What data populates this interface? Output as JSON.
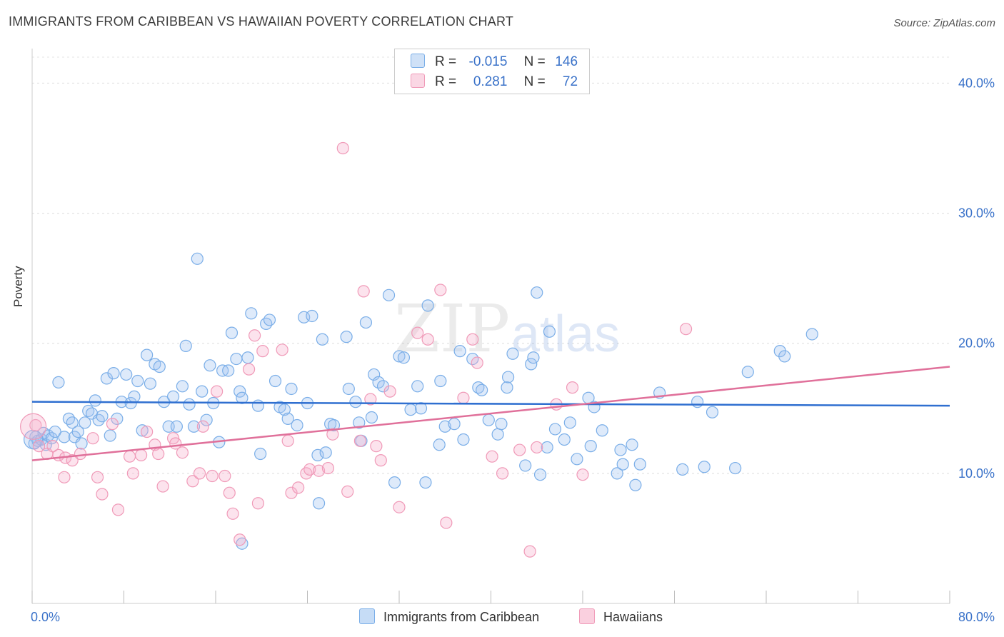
{
  "title": "IMMIGRANTS FROM CARIBBEAN VS HAWAIIAN POVERTY CORRELATION CHART",
  "source": "Source: ZipAtlas.com",
  "watermark": {
    "zip": "ZIP",
    "atlas": "atlas"
  },
  "legend": {
    "rows": [
      {
        "r_label": "R =",
        "r_value": "-0.015",
        "n_label": "N =",
        "n_value": "146"
      },
      {
        "r_label": "R =",
        "r_value": "0.281",
        "n_label": "N =",
        "n_value": "72"
      }
    ]
  },
  "chart_data": {
    "type": "scatter",
    "xlabel": "",
    "ylabel": "Poverty",
    "xlim": [
      0,
      80
    ],
    "ylim": [
      0,
      42
    ],
    "x_tick_labels": [
      "0.0%",
      "80.0%"
    ],
    "y_tick_labels": [
      "10.0%",
      "20.0%",
      "30.0%",
      "40.0%"
    ],
    "y_ticks": [
      10,
      20,
      30,
      40
    ],
    "grid": true,
    "legend_position": "top-center",
    "series": [
      {
        "name": "Immigrants from Caribbean",
        "color": "#7aaee8",
        "fill": "rgba(160,196,240,0.35)",
        "line_color": "#2f6fd0",
        "r": "-0.015",
        "n": "146",
        "trend": [
          [
            0,
            15.5
          ],
          [
            80,
            15.2
          ]
        ],
        "points": [
          [
            0.2,
            12.3
          ],
          [
            0.3,
            12.8
          ],
          [
            0.5,
            12.5
          ],
          [
            0.8,
            12.6
          ],
          [
            1.0,
            13.1
          ],
          [
            1.2,
            12.2
          ],
          [
            1.4,
            12.9
          ],
          [
            1.7,
            12.7
          ],
          [
            2.0,
            13.2
          ],
          [
            2.3,
            17.0
          ],
          [
            2.8,
            12.8
          ],
          [
            3.2,
            14.2
          ],
          [
            3.5,
            13.9
          ],
          [
            3.7,
            12.8
          ],
          [
            4.0,
            13.2
          ],
          [
            4.3,
            12.3
          ],
          [
            4.6,
            13.9
          ],
          [
            4.9,
            14.8
          ],
          [
            5.2,
            14.6
          ],
          [
            5.5,
            15.6
          ],
          [
            5.8,
            14.1
          ],
          [
            6.1,
            14.4
          ],
          [
            6.5,
            17.3
          ],
          [
            6.8,
            12.9
          ],
          [
            7.1,
            17.7
          ],
          [
            7.4,
            14.2
          ],
          [
            7.8,
            15.5
          ],
          [
            8.2,
            17.6
          ],
          [
            8.6,
            15.4
          ],
          [
            8.9,
            15.9
          ],
          [
            9.2,
            17.1
          ],
          [
            9.6,
            13.3
          ],
          [
            10.0,
            19.1
          ],
          [
            10.3,
            16.9
          ],
          [
            10.7,
            18.4
          ],
          [
            11.1,
            18.2
          ],
          [
            11.5,
            15.5
          ],
          [
            11.9,
            13.6
          ],
          [
            12.3,
            15.9
          ],
          [
            12.6,
            13.6
          ],
          [
            13.1,
            16.7
          ],
          [
            13.4,
            19.8
          ],
          [
            13.7,
            15.3
          ],
          [
            14.1,
            13.6
          ],
          [
            14.4,
            26.5
          ],
          [
            14.8,
            16.3
          ],
          [
            15.2,
            14.1
          ],
          [
            15.5,
            18.3
          ],
          [
            15.8,
            15.4
          ],
          [
            16.3,
            12.4
          ],
          [
            16.6,
            17.9
          ],
          [
            17.1,
            17.9
          ],
          [
            17.4,
            20.8
          ],
          [
            17.8,
            18.8
          ],
          [
            18.1,
            16.3
          ],
          [
            18.3,
            15.8
          ],
          [
            18.8,
            18.9
          ],
          [
            19.1,
            22.3
          ],
          [
            19.7,
            15.2
          ],
          [
            19.9,
            11.5
          ],
          [
            20.4,
            21.5
          ],
          [
            20.7,
            21.8
          ],
          [
            21.2,
            17.1
          ],
          [
            21.6,
            15.1
          ],
          [
            22.0,
            14.9
          ],
          [
            22.3,
            14.2
          ],
          [
            22.6,
            16.5
          ],
          [
            23.1,
            13.7
          ],
          [
            23.7,
            22.0
          ],
          [
            24.0,
            15.4
          ],
          [
            24.4,
            22.1
          ],
          [
            24.9,
            11.4
          ],
          [
            25.3,
            20.3
          ],
          [
            25.6,
            11.6
          ],
          [
            26.0,
            13.8
          ],
          [
            26.3,
            13.7
          ],
          [
            27.4,
            20.5
          ],
          [
            27.6,
            16.5
          ],
          [
            28.2,
            15.5
          ],
          [
            28.7,
            12.5
          ],
          [
            28.5,
            13.9
          ],
          [
            29.1,
            21.6
          ],
          [
            29.6,
            14.3
          ],
          [
            29.8,
            17.6
          ],
          [
            30.2,
            17.0
          ],
          [
            30.6,
            16.7
          ],
          [
            31.1,
            23.7
          ],
          [
            31.6,
            9.3
          ],
          [
            32.0,
            19.0
          ],
          [
            32.4,
            18.9
          ],
          [
            33.0,
            14.9
          ],
          [
            33.6,
            16.7
          ],
          [
            33.9,
            15.0
          ],
          [
            34.3,
            9.3
          ],
          [
            34.5,
            22.9
          ],
          [
            35.5,
            12.2
          ],
          [
            35.6,
            17.1
          ],
          [
            36.0,
            13.6
          ],
          [
            36.8,
            13.8
          ],
          [
            37.3,
            19.4
          ],
          [
            37.6,
            12.6
          ],
          [
            38.4,
            18.8
          ],
          [
            38.9,
            16.6
          ],
          [
            39.2,
            16.4
          ],
          [
            39.8,
            14.1
          ],
          [
            40.6,
            13.0
          ],
          [
            40.9,
            13.8
          ],
          [
            41.4,
            16.6
          ],
          [
            41.5,
            17.4
          ],
          [
            41.9,
            19.2
          ],
          [
            43.0,
            10.6
          ],
          [
            43.5,
            18.4
          ],
          [
            43.7,
            18.9
          ],
          [
            44.0,
            23.9
          ],
          [
            44.3,
            9.9
          ],
          [
            44.9,
            12.0
          ],
          [
            45.1,
            20.9
          ],
          [
            45.6,
            13.4
          ],
          [
            46.4,
            12.6
          ],
          [
            46.9,
            13.9
          ],
          [
            47.5,
            11.1
          ],
          [
            48.5,
            15.8
          ],
          [
            48.7,
            12.1
          ],
          [
            49.0,
            15.1
          ],
          [
            49.7,
            13.3
          ],
          [
            51.0,
            10.0
          ],
          [
            51.3,
            11.8
          ],
          [
            51.5,
            10.7
          ],
          [
            52.3,
            12.2
          ],
          [
            52.6,
            9.1
          ],
          [
            53.0,
            10.7
          ],
          [
            54.7,
            16.2
          ],
          [
            56.7,
            10.3
          ],
          [
            58.0,
            15.5
          ],
          [
            58.6,
            10.5
          ],
          [
            59.3,
            14.7
          ],
          [
            61.3,
            10.4
          ],
          [
            62.4,
            17.8
          ],
          [
            65.2,
            19.4
          ],
          [
            65.6,
            19.0
          ],
          [
            68.0,
            20.7
          ],
          [
            18.3,
            4.6
          ],
          [
            25.0,
            7.7
          ]
        ]
      },
      {
        "name": "Hawaiians",
        "color": "#f09ab8",
        "fill": "rgba(246,176,202,0.35)",
        "line_color": "#e0709a",
        "r": "0.281",
        "n": "72",
        "trend": [
          [
            0,
            11.0
          ],
          [
            80,
            18.2
          ]
        ],
        "points": [
          [
            0.3,
            13.7
          ],
          [
            0.6,
            12.1
          ],
          [
            1.3,
            11.5
          ],
          [
            1.8,
            12.1
          ],
          [
            2.3,
            11.4
          ],
          [
            2.9,
            11.2
          ],
          [
            2.8,
            9.7
          ],
          [
            3.5,
            11.0
          ],
          [
            4.2,
            11.5
          ],
          [
            5.3,
            12.7
          ],
          [
            5.7,
            9.7
          ],
          [
            6.1,
            8.4
          ],
          [
            7.0,
            13.8
          ],
          [
            7.5,
            7.2
          ],
          [
            8.5,
            11.3
          ],
          [
            8.8,
            10.0
          ],
          [
            9.5,
            11.4
          ],
          [
            10.0,
            13.2
          ],
          [
            10.7,
            12.2
          ],
          [
            11.0,
            11.5
          ],
          [
            11.4,
            9.0
          ],
          [
            12.3,
            12.7
          ],
          [
            12.5,
            12.3
          ],
          [
            13.1,
            11.6
          ],
          [
            14.0,
            9.4
          ],
          [
            14.6,
            10.0
          ],
          [
            14.9,
            13.6
          ],
          [
            15.7,
            9.8
          ],
          [
            16.1,
            16.3
          ],
          [
            16.8,
            9.8
          ],
          [
            17.2,
            8.5
          ],
          [
            17.5,
            6.9
          ],
          [
            18.1,
            4.9
          ],
          [
            18.9,
            18.0
          ],
          [
            19.4,
            20.6
          ],
          [
            19.7,
            7.7
          ],
          [
            20.1,
            19.4
          ],
          [
            21.8,
            19.5
          ],
          [
            22.3,
            12.5
          ],
          [
            22.6,
            8.5
          ],
          [
            23.2,
            8.9
          ],
          [
            23.9,
            10.0
          ],
          [
            24.2,
            10.3
          ],
          [
            25.0,
            10.2
          ],
          [
            25.8,
            10.4
          ],
          [
            26.2,
            13.0
          ],
          [
            27.1,
            35.0
          ],
          [
            27.5,
            8.6
          ],
          [
            28.6,
            12.5
          ],
          [
            28.9,
            24.0
          ],
          [
            29.5,
            15.7
          ],
          [
            30.0,
            12.1
          ],
          [
            30.4,
            11.0
          ],
          [
            31.2,
            16.3
          ],
          [
            32.0,
            7.4
          ],
          [
            33.6,
            20.8
          ],
          [
            34.5,
            20.3
          ],
          [
            35.6,
            24.1
          ],
          [
            36.1,
            6.2
          ],
          [
            37.6,
            15.8
          ],
          [
            38.4,
            20.3
          ],
          [
            38.8,
            18.5
          ],
          [
            40.1,
            11.3
          ],
          [
            41.0,
            10.0
          ],
          [
            42.5,
            11.8
          ],
          [
            43.4,
            4.0
          ],
          [
            44.0,
            12.0
          ],
          [
            45.7,
            15.3
          ],
          [
            47.1,
            16.6
          ],
          [
            48.0,
            9.9
          ],
          [
            57.0,
            21.1
          ]
        ]
      }
    ]
  }
}
